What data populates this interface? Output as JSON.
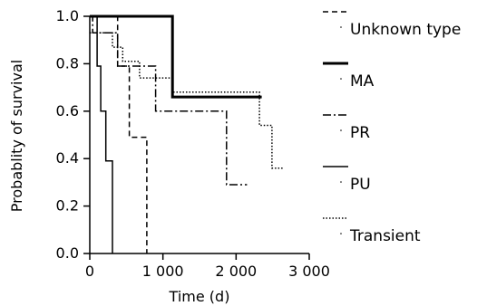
{
  "chart_data": {
    "type": "line",
    "step": true,
    "xlabel": "Time (d)",
    "ylabel": "Probablity of survival",
    "xlim": [
      0,
      3000
    ],
    "ylim": [
      0,
      1.0
    ],
    "x_ticks": [
      0,
      1000,
      2000,
      3000
    ],
    "x_tick_labels": [
      "0",
      "1 000",
      "2 000",
      "3 000"
    ],
    "y_ticks": [
      0,
      0.2,
      0.4,
      0.6,
      0.8,
      1.0
    ],
    "y_tick_labels": [
      "0.0",
      "0.2",
      "0.4",
      "0.6",
      "0.8",
      "1.0"
    ],
    "grid": false,
    "legend_position": "right",
    "series": [
      {
        "name": "Unknown type",
        "style": "dashed",
        "color": "#000000",
        "width": 1.5,
        "points": [
          [
            0,
            1.0
          ],
          [
            380,
            1.0
          ],
          [
            380,
            0.79
          ],
          [
            540,
            0.79
          ],
          [
            540,
            0.49
          ],
          [
            780,
            0.49
          ],
          [
            780,
            0.0
          ]
        ]
      },
      {
        "name": "MA",
        "style": "solid",
        "color": "#000000",
        "width": 3,
        "points": [
          [
            0,
            1.0
          ],
          [
            1130,
            1.0
          ],
          [
            1130,
            0.66
          ],
          [
            2350,
            0.66
          ]
        ]
      },
      {
        "name": "PR",
        "style": "dashdot",
        "color": "#000000",
        "width": 1.5,
        "points": [
          [
            0,
            1.0
          ],
          [
            40,
            1.0
          ],
          [
            40,
            0.93
          ],
          [
            380,
            0.93
          ],
          [
            380,
            0.79
          ],
          [
            900,
            0.79
          ],
          [
            900,
            0.6
          ],
          [
            1870,
            0.6
          ],
          [
            1870,
            0.29
          ],
          [
            2150,
            0.29
          ]
        ]
      },
      {
        "name": "PU",
        "style": "solid",
        "color": "#000000",
        "width": 1.5,
        "points": [
          [
            0,
            1.0
          ],
          [
            100,
            1.0
          ],
          [
            100,
            0.79
          ],
          [
            150,
            0.79
          ],
          [
            150,
            0.6
          ],
          [
            220,
            0.6
          ],
          [
            220,
            0.39
          ],
          [
            310,
            0.39
          ],
          [
            310,
            0.0
          ]
        ]
      },
      {
        "name": "Transient",
        "style": "dotted",
        "color": "#000000",
        "width": 1.5,
        "points": [
          [
            0,
            0.93
          ],
          [
            310,
            0.93
          ],
          [
            310,
            0.87
          ],
          [
            450,
            0.87
          ],
          [
            450,
            0.81
          ],
          [
            680,
            0.81
          ],
          [
            680,
            0.74
          ],
          [
            1130,
            0.74
          ],
          [
            1130,
            0.68
          ],
          [
            2320,
            0.68
          ],
          [
            2320,
            0.54
          ],
          [
            2490,
            0.54
          ],
          [
            2490,
            0.36
          ],
          [
            2660,
            0.36
          ]
        ]
      }
    ]
  }
}
